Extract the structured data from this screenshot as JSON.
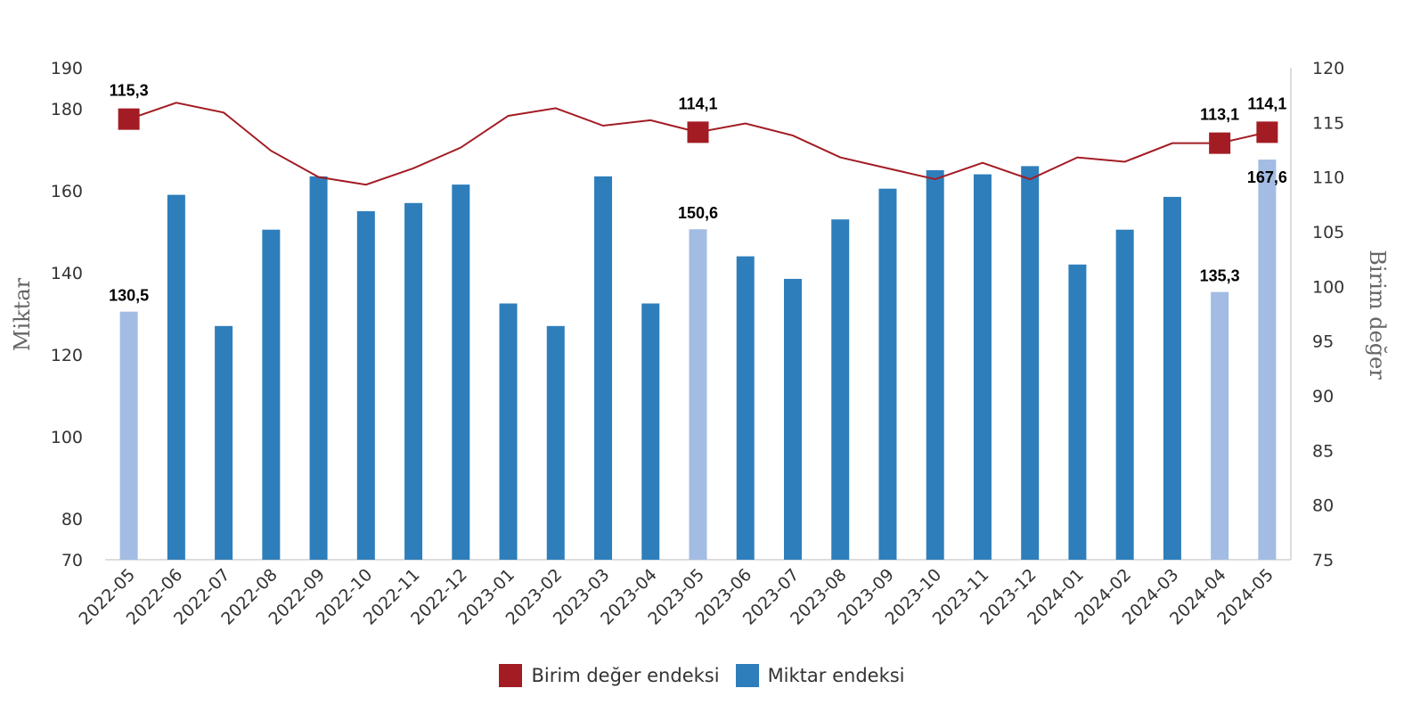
{
  "chart_data": {
    "type": "bar",
    "categories": [
      "2022-05",
      "2022-06",
      "2022-07",
      "2022-08",
      "2022-09",
      "2022-10",
      "2022-11",
      "2022-12",
      "2023-01",
      "2023-02",
      "2023-03",
      "2023-04",
      "2023-05",
      "2023-06",
      "2023-07",
      "2023-08",
      "2023-09",
      "2023-10",
      "2023-11",
      "2023-12",
      "2024-01",
      "2024-02",
      "2024-03",
      "2024-04",
      "2024-05"
    ],
    "series": [
      {
        "name": "Miktar endeksi",
        "axis": "left",
        "kind": "bar",
        "color": "#2e7ebb",
        "highlight_color": "#a3bce3",
        "highlight_indices": [
          0,
          12,
          23,
          24
        ],
        "values": [
          130.5,
          159,
          127,
          150.5,
          163.5,
          155,
          157,
          161.5,
          132.5,
          127,
          163.5,
          132.5,
          150.6,
          144,
          138.5,
          153,
          160.5,
          165,
          164,
          166,
          142,
          150.5,
          158.5,
          135.3,
          167.6
        ]
      },
      {
        "name": "Birim değer endeksi",
        "axis": "right",
        "kind": "line",
        "color": "#a31c24",
        "marker_indices": [
          0,
          12,
          23,
          24
        ],
        "values": [
          115.3,
          116.8,
          115.9,
          112.4,
          110,
          109.3,
          110.8,
          112.7,
          115.6,
          116.3,
          114.7,
          115.2,
          114.1,
          114.9,
          113.8,
          111.8,
          110.8,
          109.8,
          111.3,
          109.8,
          111.8,
          111.4,
          113.1,
          113.1,
          114.1
        ]
      }
    ],
    "data_labels": [
      {
        "series": 0,
        "index": 0,
        "text": "130,5"
      },
      {
        "series": 0,
        "index": 12,
        "text": "150,6"
      },
      {
        "series": 0,
        "index": 23,
        "text": "135,3"
      },
      {
        "series": 0,
        "index": 24,
        "text": "167,6"
      },
      {
        "series": 1,
        "index": 0,
        "text": "115,3"
      },
      {
        "series": 1,
        "index": 12,
        "text": "114,1"
      },
      {
        "series": 1,
        "index": 23,
        "text": "113,1"
      },
      {
        "series": 1,
        "index": 24,
        "text": "114,1"
      }
    ],
    "ylabel": "Miktar",
    "y2label": "Birim değer",
    "ylim": [
      70,
      190
    ],
    "y2lim": [
      75,
      120
    ],
    "yticks": [
      70,
      80,
      100,
      120,
      140,
      160,
      180,
      190
    ],
    "y2ticks": [
      75,
      80,
      85,
      90,
      95,
      100,
      105,
      110,
      115,
      120
    ],
    "grid": false,
    "legend_position": "bottom"
  },
  "legend": [
    {
      "label": "Birim değer endeksi",
      "color": "#a31c24"
    },
    {
      "label": "Miktar endeksi",
      "color": "#2e7ebb"
    }
  ]
}
